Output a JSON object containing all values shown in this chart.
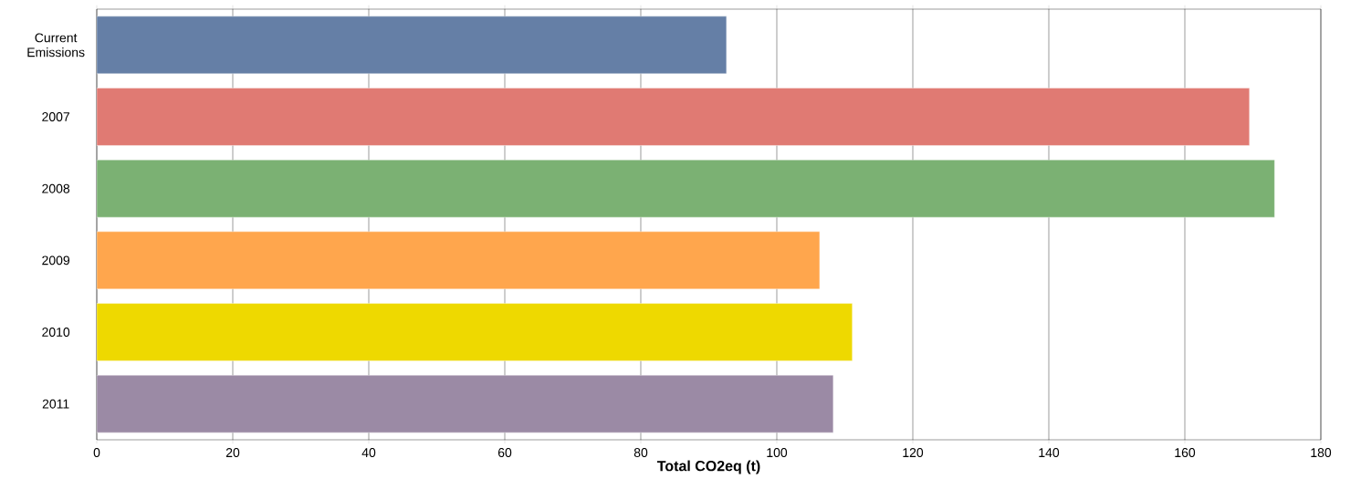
{
  "chart_data": {
    "type": "bar",
    "orientation": "horizontal",
    "xlabel": "Total CO2eq (t)",
    "categories": [
      "Current Emissions",
      "2007",
      "2008",
      "2009",
      "2010",
      "2011"
    ],
    "values": [
      92.6,
      169.5,
      173.2,
      106.3,
      111.1,
      108.3
    ],
    "colors": [
      "#657fa6",
      "#e07a73",
      "#7bb173",
      "#ffa64d",
      "#eed900",
      "#9b8aa5"
    ],
    "xlim": [
      0,
      180
    ],
    "xticks": [
      0,
      20,
      40,
      60,
      80,
      100,
      120,
      140,
      160,
      180
    ],
    "grid": "x"
  }
}
